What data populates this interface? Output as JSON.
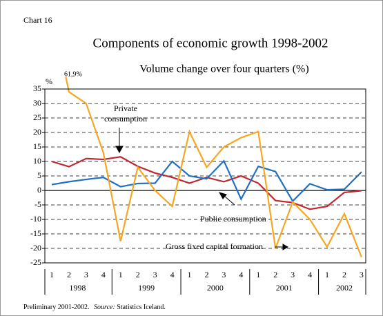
{
  "chart_data": {
    "type": "line",
    "label": "Chart 16",
    "title": "Components of economic growth 1998-2002",
    "subtitle": "Volume change over four quarters (%)",
    "y_unit": "%",
    "categories": [
      "1",
      "2",
      "3",
      "4",
      "1",
      "2",
      "3",
      "4",
      "1",
      "2",
      "3",
      "4",
      "1",
      "2",
      "3",
      "4",
      "1",
      "2",
      "3"
    ],
    "years": [
      "1998",
      "1999",
      "2000",
      "2001",
      "2002"
    ],
    "series": [
      {
        "name": "Private consumption",
        "color": "#c0262d",
        "values": [
          10,
          8.2,
          11,
          10.7,
          11.6,
          8.3,
          6,
          4.5,
          2.5,
          4.5,
          3,
          5,
          2.5,
          -3.5,
          -4.2,
          -6.5,
          -5.5,
          -0.7,
          -0.1
        ]
      },
      {
        "name": "Public consumption",
        "color": "#1f6fc5",
        "values": [
          2,
          3,
          3.8,
          4.5,
          1.3,
          2.4,
          2.5,
          10,
          5,
          4,
          10.2,
          -3,
          8.3,
          6.5,
          -3.7,
          2.3,
          0.2,
          0.4,
          6.4
        ]
      },
      {
        "name": "Gross fixed capital formation",
        "color": "#f5a623",
        "values": [
          61.9,
          34,
          30,
          13,
          -17.5,
          8,
          0,
          -5.5,
          20.3,
          8,
          15,
          18.2,
          20.3,
          -20,
          -4,
          -10,
          -19.5,
          -8,
          -23
        ],
        "value_labels": [
          "61,9%",
          null,
          null,
          null,
          null,
          null,
          null,
          null,
          null,
          null,
          null,
          null,
          null,
          null,
          null,
          null,
          null,
          null,
          null
        ]
      }
    ],
    "ylim": [
      -25,
      35
    ],
    "yticks": [
      -25,
      -20,
      -15,
      -10,
      -5,
      0,
      5,
      10,
      15,
      20,
      25,
      30,
      35
    ],
    "grid": true,
    "footnote": {
      "text": "Preliminary 2001-2002.",
      "source_label": "Source:",
      "source": "Statistics Iceland."
    }
  }
}
